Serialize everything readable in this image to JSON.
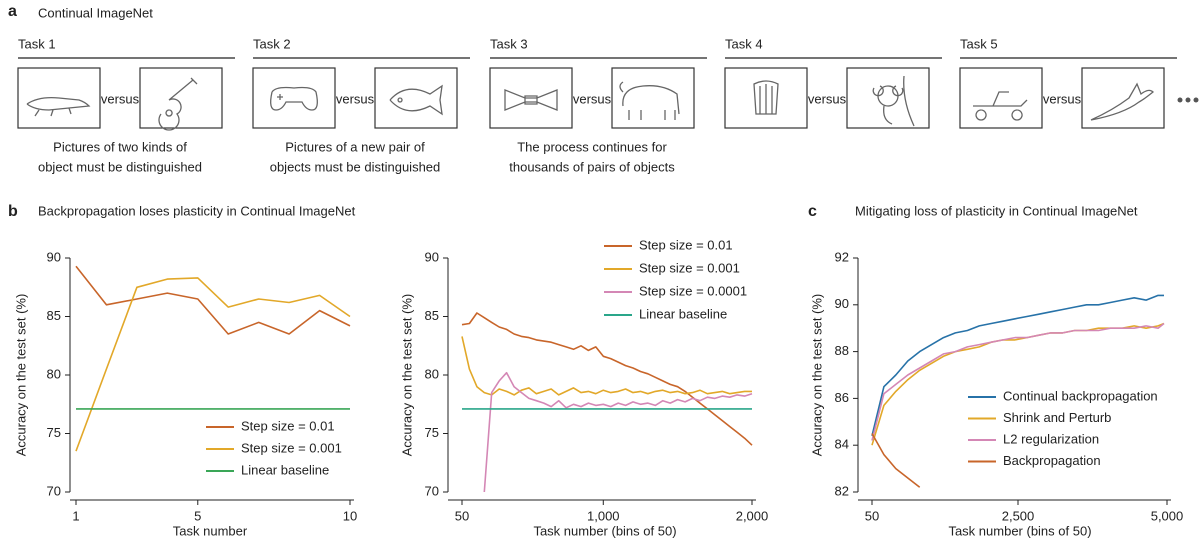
{
  "panel_a": {
    "label": "a",
    "title": "Continual ImageNet",
    "versus": "versus",
    "tasks": [
      {
        "label": "Task 1",
        "caption": [
          "Pictures of two kinds of",
          "object must be distinguished"
        ]
      },
      {
        "label": "Task 2",
        "caption": [
          "Pictures of a new pair of",
          "objects must be distinguished"
        ]
      },
      {
        "label": "Task 3",
        "caption": [
          "The process continues for",
          "thousands of pairs of objects"
        ]
      },
      {
        "label": "Task 4",
        "caption": []
      },
      {
        "label": "Task 5",
        "caption": []
      }
    ]
  },
  "panel_b": {
    "label": "b",
    "title": "Backpropagation loses plasticity in Continual ImageNet"
  },
  "panel_c": {
    "label": "c"
  },
  "chart_data": [
    {
      "type": "line",
      "xlabel": "Task number",
      "ylabel": "Accuracy on the test set (%)",
      "x": [
        1,
        2,
        3,
        4,
        5,
        6,
        7,
        8,
        9,
        10
      ],
      "xlim": [
        1,
        10
      ],
      "xticks": [
        1,
        5,
        10
      ],
      "ylim": [
        70,
        90
      ],
      "yticks": [
        70,
        75,
        80,
        85,
        90
      ],
      "legend": "lower right",
      "series": [
        {
          "name": "Step size = 0.01",
          "color": "#c8652a",
          "values": [
            89.3,
            86.0,
            86.5,
            87.0,
            86.5,
            83.5,
            84.5,
            83.5,
            85.5,
            84.2
          ]
        },
        {
          "name": "Step size = 0.001",
          "color": "#e2a829",
          "values": [
            73.5,
            80.5,
            87.5,
            88.2,
            88.3,
            85.8,
            86.5,
            86.2,
            86.8,
            85.0
          ]
        },
        {
          "name": "Linear baseline",
          "color": "#3aa657",
          "values": [
            77.1,
            77.1,
            77.1,
            77.1,
            77.1,
            77.1,
            77.1,
            77.1,
            77.1,
            77.1
          ]
        }
      ]
    },
    {
      "type": "line",
      "xlabel": "Task number (bins of 50)",
      "ylabel": "Accuracy on the test set (%)",
      "x": [
        50,
        100,
        150,
        200,
        250,
        300,
        350,
        400,
        450,
        500,
        550,
        600,
        650,
        700,
        750,
        800,
        850,
        900,
        950,
        1000,
        1050,
        1100,
        1150,
        1200,
        1250,
        1300,
        1350,
        1400,
        1450,
        1500,
        1550,
        1600,
        1650,
        1700,
        1750,
        1800,
        1850,
        1900,
        1950,
        2000
      ],
      "xlim": [
        50,
        2000
      ],
      "xticks": [
        50,
        {
          "value": 1000,
          "label": "1,000"
        },
        {
          "value": 2000,
          "label": "2,000"
        }
      ],
      "ylim": [
        70,
        90
      ],
      "yticks": [
        70,
        75,
        80,
        85,
        90
      ],
      "legend": "upper right",
      "series": [
        {
          "name": "Step size = 0.01",
          "color": "#c8652a",
          "values": [
            84.3,
            84.4,
            85.3,
            84.9,
            84.5,
            84.1,
            83.9,
            83.5,
            83.3,
            83.2,
            83.0,
            82.9,
            82.8,
            82.6,
            82.4,
            82.2,
            82.5,
            82.1,
            82.4,
            81.6,
            81.4,
            81.1,
            80.8,
            80.6,
            80.3,
            80.1,
            79.8,
            79.5,
            79.2,
            79.0,
            78.6,
            78.1,
            77.6,
            77.1,
            76.6,
            76.1,
            75.6,
            75.1,
            74.6,
            74.0
          ]
        },
        {
          "name": "Step size = 0.001",
          "color": "#e2a829",
          "values": [
            83.3,
            80.5,
            79.0,
            78.5,
            78.3,
            78.8,
            78.6,
            78.3,
            78.7,
            78.9,
            78.4,
            78.6,
            78.8,
            78.3,
            78.6,
            78.9,
            78.5,
            78.6,
            78.4,
            78.7,
            78.5,
            78.6,
            78.8,
            78.5,
            78.6,
            78.4,
            78.6,
            78.7,
            78.5,
            78.6,
            78.4,
            78.5,
            78.7,
            78.4,
            78.5,
            78.6,
            78.4,
            78.5,
            78.6,
            78.6
          ]
        },
        {
          "name": "Step size = 0.0001",
          "color": "#d487b5",
          "values": [
            null,
            null,
            null,
            70.0,
            78.5,
            79.5,
            80.2,
            79.0,
            78.5,
            78.0,
            77.8,
            77.6,
            77.3,
            77.8,
            77.2,
            77.5,
            77.3,
            77.6,
            77.4,
            77.5,
            77.3,
            77.6,
            77.4,
            77.7,
            77.5,
            77.6,
            77.4,
            77.8,
            77.6,
            77.9,
            77.7,
            78.0,
            77.8,
            78.1,
            78.0,
            78.2,
            78.1,
            78.3,
            78.2,
            78.4
          ]
        },
        {
          "name": "Linear baseline",
          "color": "#2aa68a",
          "values": [
            77.1,
            77.1,
            77.1,
            77.1,
            77.1,
            77.1,
            77.1,
            77.1,
            77.1,
            77.1,
            77.1,
            77.1,
            77.1,
            77.1,
            77.1,
            77.1,
            77.1,
            77.1,
            77.1,
            77.1,
            77.1,
            77.1,
            77.1,
            77.1,
            77.1,
            77.1,
            77.1,
            77.1,
            77.1,
            77.1,
            77.1,
            77.1,
            77.1,
            77.1,
            77.1,
            77.1,
            77.1,
            77.1,
            77.1,
            77.1
          ]
        }
      ]
    },
    {
      "type": "line",
      "title": "Mitigating loss of plasticity in Continual ImageNet",
      "xlabel": "Task number (bins of 50)",
      "ylabel": "Accuracy on the test set (%)",
      "x": [
        50,
        250,
        450,
        650,
        850,
        1050,
        1250,
        1450,
        1650,
        1850,
        2050,
        2250,
        2450,
        2650,
        2850,
        3050,
        3250,
        3450,
        3650,
        3850,
        4050,
        4250,
        4450,
        4650,
        4850,
        4950
      ],
      "xlim": [
        50,
        5000
      ],
      "xticks": [
        50,
        {
          "value": 2500,
          "label": "2,500"
        },
        {
          "value": 5000,
          "label": "5,000"
        }
      ],
      "ylim": [
        82,
        92
      ],
      "yticks": [
        82,
        84,
        86,
        88,
        90,
        92
      ],
      "legend": "lower right",
      "series": [
        {
          "name": "Continual backpropagation",
          "color": "#2772a8",
          "values": [
            84.4,
            86.5,
            87.0,
            87.6,
            88.0,
            88.3,
            88.6,
            88.8,
            88.9,
            89.1,
            89.2,
            89.3,
            89.4,
            89.5,
            89.6,
            89.7,
            89.8,
            89.9,
            90.0,
            90.0,
            90.1,
            90.2,
            90.3,
            90.2,
            90.4,
            90.4
          ]
        },
        {
          "name": "Shrink and Perturb",
          "color": "#e2a829",
          "values": [
            84.0,
            85.7,
            86.3,
            86.8,
            87.2,
            87.5,
            87.8,
            88.0,
            88.1,
            88.2,
            88.4,
            88.5,
            88.5,
            88.6,
            88.7,
            88.8,
            88.8,
            88.9,
            88.9,
            89.0,
            89.0,
            89.0,
            89.1,
            89.0,
            89.1,
            89.2
          ]
        },
        {
          "name": "L2 regularization",
          "color": "#d487b5",
          "values": [
            84.2,
            86.2,
            86.6,
            87.0,
            87.3,
            87.6,
            87.9,
            88.0,
            88.2,
            88.3,
            88.4,
            88.5,
            88.6,
            88.6,
            88.7,
            88.8,
            88.8,
            88.9,
            88.9,
            88.9,
            89.0,
            89.0,
            89.0,
            89.1,
            89.0,
            89.2
          ]
        },
        {
          "name": "Backpropagation",
          "color": "#c8652a",
          "values": [
            84.5,
            83.6,
            83.0,
            82.6,
            82.2,
            null,
            null,
            null,
            null,
            null,
            null,
            null,
            null,
            null,
            null,
            null,
            null,
            null,
            null,
            null,
            null,
            null,
            null,
            null,
            null,
            null
          ]
        }
      ]
    }
  ]
}
